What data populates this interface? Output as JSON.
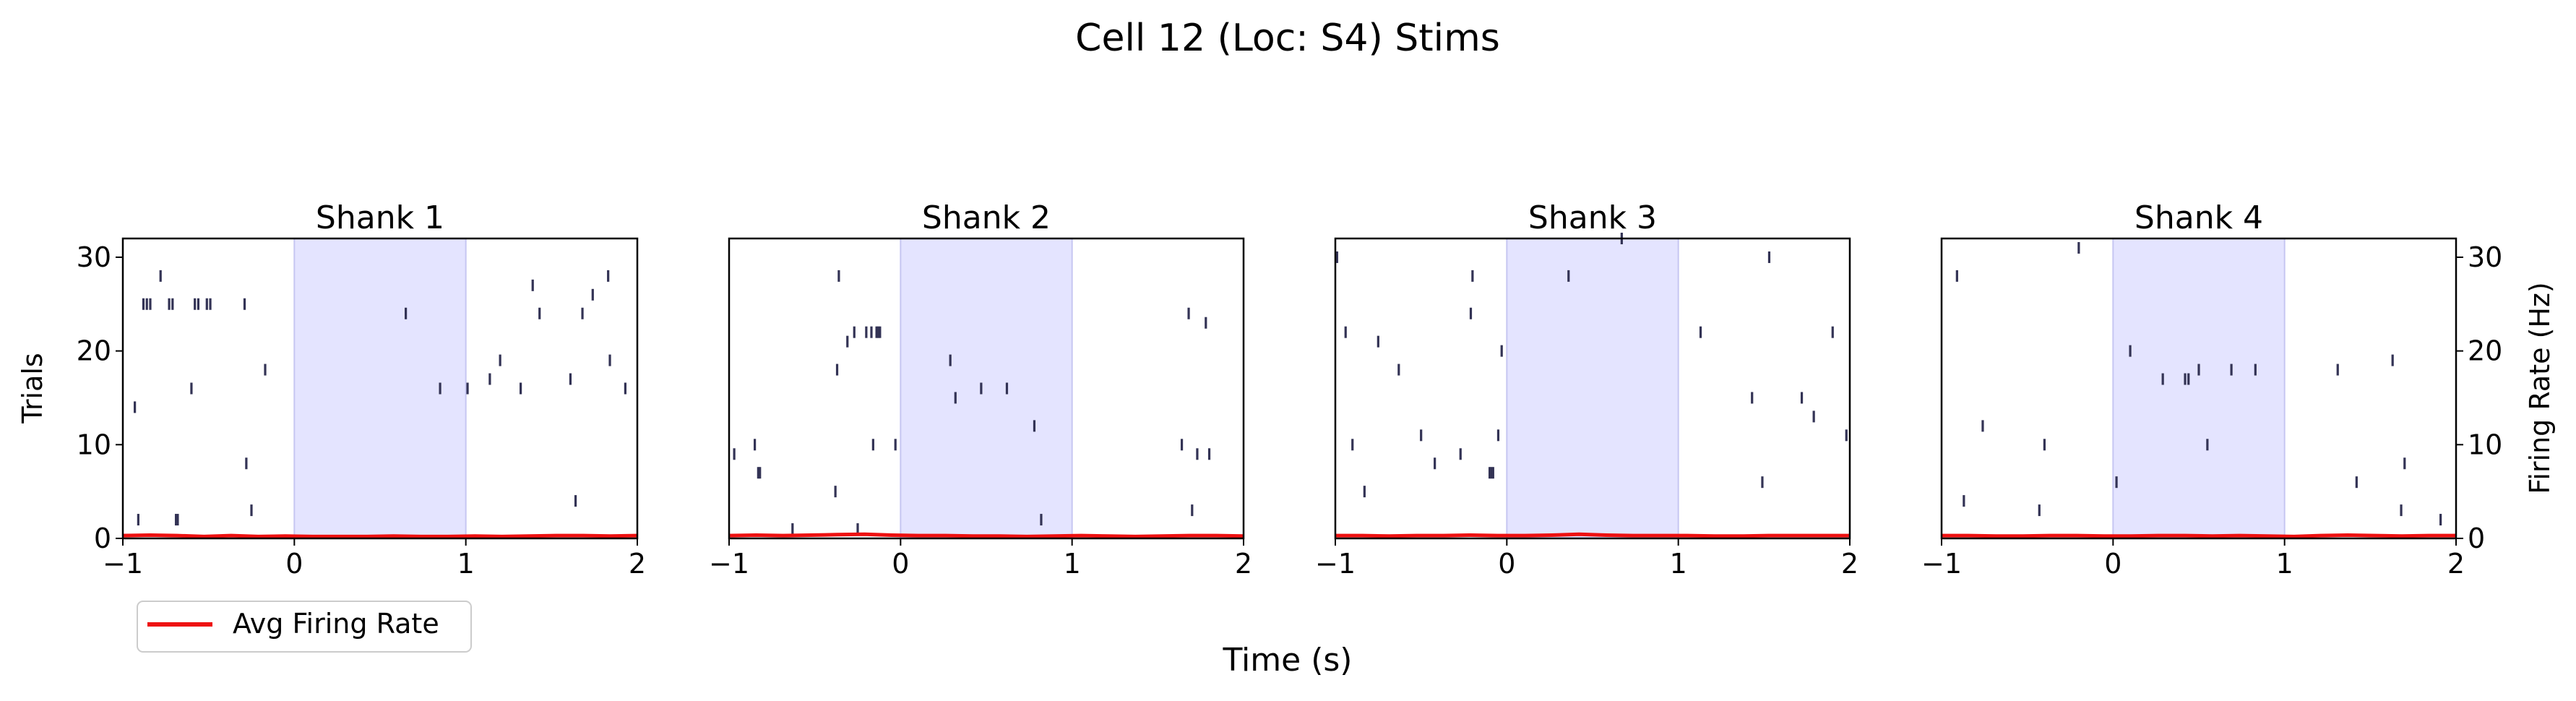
{
  "suptitle": "Cell 12 (Loc: S4) Stims",
  "xlabel": "Time (s)",
  "ylabel_left": "Trials",
  "ylabel_right": "Firing Rate (Hz)",
  "legend": {
    "label": "Avg Firing Rate",
    "color": "#ee1111"
  },
  "colors": {
    "spike": "#333355",
    "stim_fill": "#e4e4ff",
    "stim_edge": "#c6c6f2",
    "rate": "#ee1111"
  },
  "chart_data": {
    "type": "raster",
    "xlim": [
      -1,
      2
    ],
    "ylim_trials": [
      0,
      32
    ],
    "ylim_rate": [
      0,
      32
    ],
    "xticks": [
      -1,
      0,
      1,
      2
    ],
    "xtick_labels": [
      "−1",
      "0",
      "1",
      "2"
    ],
    "yticks": [
      0,
      10,
      20,
      30
    ],
    "ytick_labels": [
      "0",
      "10",
      "20",
      "30"
    ],
    "stim_window": [
      0,
      1
    ],
    "panels": [
      {
        "title": "Shank 1",
        "spikes": [
          [
            -0.93,
            14
          ],
          [
            -0.91,
            2
          ],
          [
            -0.88,
            25
          ],
          [
            -0.86,
            25
          ],
          [
            -0.84,
            25
          ],
          [
            -0.78,
            28
          ],
          [
            -0.73,
            25
          ],
          [
            -0.71,
            25
          ],
          [
            -0.69,
            2
          ],
          [
            -0.68,
            2
          ],
          [
            -0.6,
            16
          ],
          [
            -0.58,
            25
          ],
          [
            -0.56,
            25
          ],
          [
            -0.51,
            25
          ],
          [
            -0.49,
            25
          ],
          [
            -0.29,
            25
          ],
          [
            -0.28,
            8
          ],
          [
            -0.25,
            3
          ],
          [
            -0.17,
            18
          ],
          [
            0.65,
            24
          ],
          [
            0.85,
            16
          ],
          [
            1.01,
            16
          ],
          [
            1.14,
            17
          ],
          [
            1.2,
            19
          ],
          [
            1.32,
            16
          ],
          [
            1.39,
            27
          ],
          [
            1.43,
            24
          ],
          [
            1.61,
            17
          ],
          [
            1.64,
            4
          ],
          [
            1.68,
            24
          ],
          [
            1.74,
            26
          ],
          [
            1.83,
            28
          ],
          [
            1.84,
            19
          ],
          [
            1.93,
            16
          ]
        ],
        "rate": [
          0.3,
          0.35,
          0.3,
          0.2,
          0.3,
          0.2,
          0.25,
          0.2,
          0.2,
          0.2,
          0.25,
          0.2,
          0.2,
          0.25,
          0.2,
          0.25,
          0.3,
          0.3,
          0.25,
          0.3
        ]
      },
      {
        "title": "Shank 2",
        "spikes": [
          [
            -0.97,
            9
          ],
          [
            -0.85,
            10
          ],
          [
            -0.83,
            7
          ],
          [
            -0.82,
            7
          ],
          [
            -0.63,
            1
          ],
          [
            -0.38,
            5
          ],
          [
            -0.37,
            18
          ],
          [
            -0.36,
            28
          ],
          [
            -0.31,
            21
          ],
          [
            -0.27,
            22
          ],
          [
            -0.2,
            22
          ],
          [
            -0.17,
            22
          ],
          [
            -0.14,
            22
          ],
          [
            -0.13,
            22
          ],
          [
            -0.12,
            22
          ],
          [
            -0.25,
            1
          ],
          [
            -0.16,
            10
          ],
          [
            -0.03,
            10
          ],
          [
            0.29,
            19
          ],
          [
            0.32,
            15
          ],
          [
            0.47,
            16
          ],
          [
            0.62,
            16
          ],
          [
            0.78,
            12
          ],
          [
            0.82,
            2
          ],
          [
            1.64,
            10
          ],
          [
            1.68,
            24
          ],
          [
            1.7,
            3
          ],
          [
            1.73,
            9
          ],
          [
            1.78,
            23
          ],
          [
            1.8,
            9
          ]
        ],
        "rate": [
          0.3,
          0.35,
          0.3,
          0.35,
          0.4,
          0.45,
          0.35,
          0.3,
          0.3,
          0.25,
          0.25,
          0.2,
          0.25,
          0.3,
          0.25,
          0.2,
          0.25,
          0.3,
          0.3,
          0.25
        ]
      },
      {
        "title": "Shank 3",
        "spikes": [
          [
            -0.99,
            30
          ],
          [
            -0.94,
            22
          ],
          [
            -0.9,
            10
          ],
          [
            -0.83,
            5
          ],
          [
            -0.75,
            21
          ],
          [
            -0.63,
            18
          ],
          [
            -0.5,
            11
          ],
          [
            -0.42,
            8
          ],
          [
            -0.27,
            9
          ],
          [
            -0.2,
            28
          ],
          [
            -0.21,
            24
          ],
          [
            -0.1,
            7
          ],
          [
            -0.09,
            7
          ],
          [
            -0.08,
            7
          ],
          [
            -0.05,
            11
          ],
          [
            -0.03,
            20
          ],
          [
            0.36,
            28
          ],
          [
            0.67,
            32
          ],
          [
            1.13,
            22
          ],
          [
            1.43,
            15
          ],
          [
            1.49,
            6
          ],
          [
            1.53,
            30
          ],
          [
            1.72,
            15
          ],
          [
            1.79,
            13
          ],
          [
            1.9,
            22
          ],
          [
            1.98,
            11
          ]
        ],
        "rate": [
          0.3,
          0.3,
          0.25,
          0.3,
          0.3,
          0.35,
          0.3,
          0.3,
          0.35,
          0.45,
          0.35,
          0.3,
          0.3,
          0.3,
          0.25,
          0.25,
          0.3,
          0.3,
          0.3,
          0.3
        ]
      },
      {
        "title": "Shank 4",
        "spikes": [
          [
            -0.91,
            28
          ],
          [
            -0.87,
            4
          ],
          [
            -0.76,
            12
          ],
          [
            -0.43,
            3
          ],
          [
            -0.4,
            10
          ],
          [
            -0.2,
            31
          ],
          [
            0.02,
            6
          ],
          [
            0.1,
            20
          ],
          [
            0.29,
            17
          ],
          [
            0.42,
            17
          ],
          [
            0.44,
            17
          ],
          [
            0.5,
            18
          ],
          [
            0.55,
            10
          ],
          [
            0.69,
            18
          ],
          [
            0.83,
            18
          ],
          [
            1.31,
            18
          ],
          [
            1.42,
            6
          ],
          [
            1.63,
            19
          ],
          [
            1.68,
            3
          ],
          [
            1.7,
            8
          ],
          [
            1.91,
            2
          ]
        ],
        "rate": [
          0.3,
          0.3,
          0.25,
          0.25,
          0.3,
          0.3,
          0.25,
          0.25,
          0.3,
          0.3,
          0.25,
          0.3,
          0.25,
          0.2,
          0.3,
          0.35,
          0.3,
          0.25,
          0.3,
          0.3
        ]
      }
    ]
  }
}
